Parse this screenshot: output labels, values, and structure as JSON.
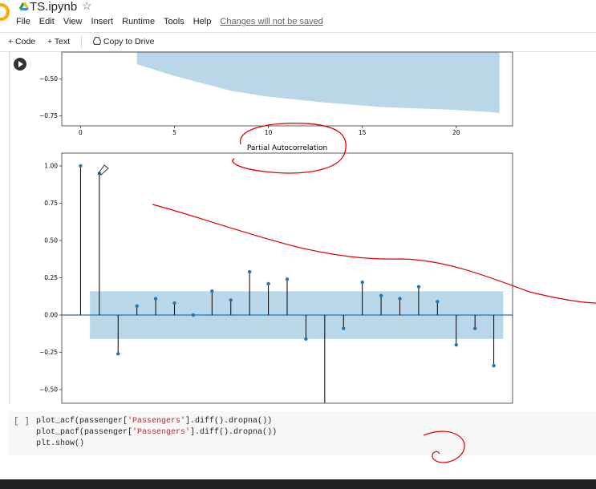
{
  "app": {
    "title": "TS.ipynb"
  },
  "menu": {
    "items": [
      "File",
      "Edit",
      "View",
      "Insert",
      "Runtime",
      "Tools",
      "Help"
    ],
    "notice": "Changes will not be saved"
  },
  "toolbar": {
    "code_label": "+ Code",
    "text_label": "+ Text",
    "copy_label": "Copy to Drive"
  },
  "code": {
    "bracket": "[ ]",
    "line1_a": "plot_acf(passenger[",
    "line1_str": "'Passengers'",
    "line1_b": "].diff().dropna())",
    "line2_a": "plot_pacf(passenger[",
    "line2_str": "'Passengers'",
    "line2_b": "].diff().dropna())",
    "line3": "plt.show()"
  },
  "chart_data": [
    {
      "type": "area",
      "title": "",
      "description_note": "bottom part of autocorrelation plot (cropped)",
      "x_ticks": [
        0,
        5,
        10,
        15,
        20
      ],
      "y_ticks": [
        -0.5,
        -0.75
      ],
      "y_tick_labels": [
        "−0.50",
        "−0.75"
      ],
      "xlim": [
        -1,
        23
      ],
      "confidence_band_lower": [
        [
          3,
          -0.4
        ],
        [
          5,
          -0.48
        ],
        [
          8,
          -0.58
        ],
        [
          10,
          -0.62
        ],
        [
          13,
          -0.66
        ],
        [
          16,
          -0.69
        ],
        [
          20,
          -0.71
        ],
        [
          22.3,
          -0.73
        ]
      ]
    },
    {
      "type": "stem",
      "title": "Partial Autocorrelation",
      "xlim": [
        -1,
        23
      ],
      "ylim": [
        -0.6,
        1.08
      ],
      "y_ticks": [
        1.0,
        0.75,
        0.5,
        0.25,
        0.0,
        -0.25,
        -0.5
      ],
      "y_tick_labels": [
        "1.00",
        "0.75",
        "0.50",
        "0.25",
        "0.00",
        "−0.25",
        "−0.50"
      ],
      "confidence_band": [
        -0.16,
        0.16
      ],
      "lags": [
        0,
        1,
        2,
        3,
        4,
        5,
        6,
        7,
        8,
        9,
        10,
        11,
        12,
        13,
        14,
        15,
        16,
        17,
        18,
        19,
        20,
        21,
        22
      ],
      "values": [
        1.0,
        0.95,
        -0.26,
        0.06,
        0.11,
        0.08,
        0.0,
        0.16,
        0.1,
        0.29,
        0.21,
        0.24,
        -0.16,
        -0.65,
        -0.09,
        0.22,
        0.13,
        0.11,
        0.19,
        0.09,
        -0.2,
        -0.09,
        -0.34
      ]
    }
  ]
}
